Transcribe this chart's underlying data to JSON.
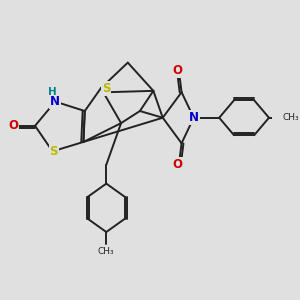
{
  "bg_color": "#e0e0e0",
  "bond_color": "#222222",
  "bond_width": 1.4,
  "atom_colors": {
    "S": "#bbbb00",
    "N": "#0000cc",
    "O": "#cc0000",
    "H": "#008888",
    "C": "#222222"
  },
  "font_size": 8.5,
  "fig_size": [
    3.0,
    3.0
  ],
  "dpi": 100
}
